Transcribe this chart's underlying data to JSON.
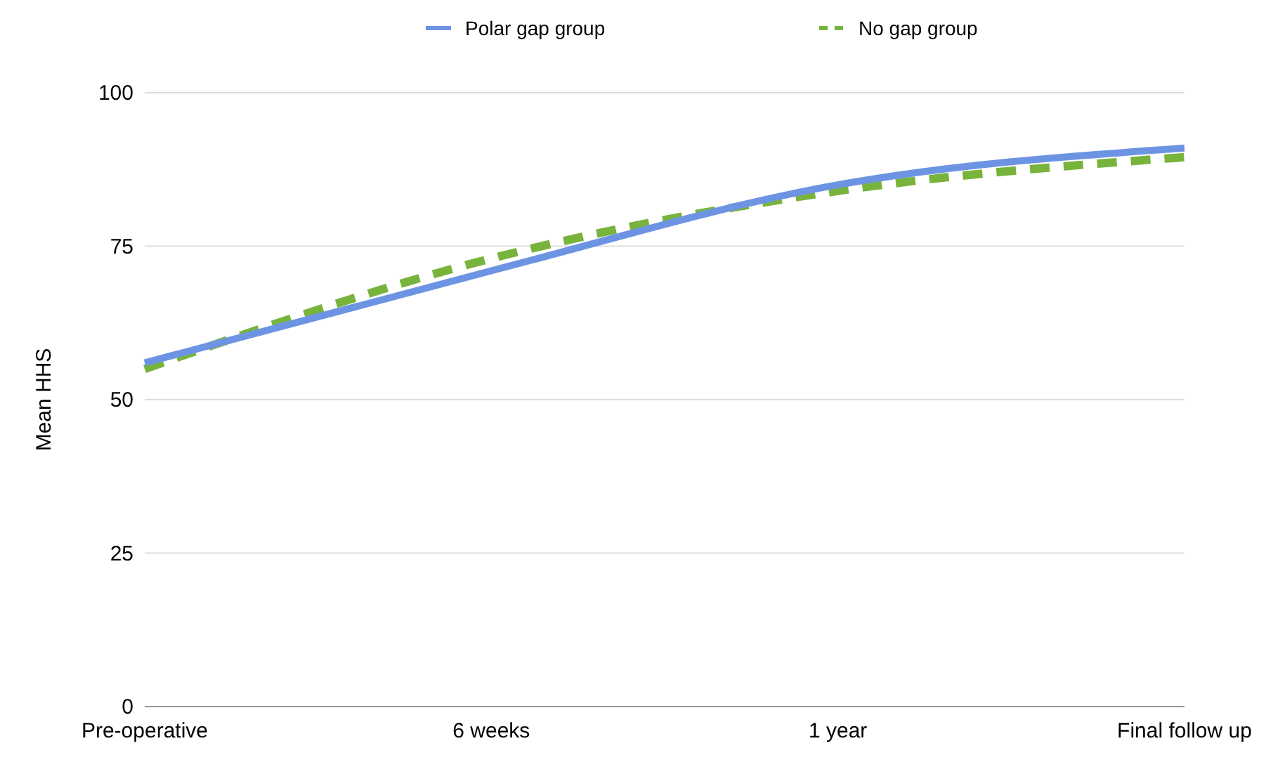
{
  "chart_data": {
    "type": "line",
    "ylabel": "Mean HHS",
    "categories": [
      "Pre-operative",
      "6 weeks",
      "1 year",
      "Final follow up"
    ],
    "series": [
      {
        "name": "Polar gap group",
        "color": "#6d94e3",
        "values": [
          56,
          71,
          85,
          91
        ],
        "line_style": "solid"
      },
      {
        "name": "No gap group",
        "color": "#78b33c",
        "values": [
          55,
          73,
          84,
          89.5
        ],
        "line_style": "dashed"
      }
    ],
    "ylim": [
      0,
      100
    ],
    "yticks": [
      0,
      25,
      50,
      75,
      100
    ],
    "grid": "y",
    "legend": "top"
  }
}
